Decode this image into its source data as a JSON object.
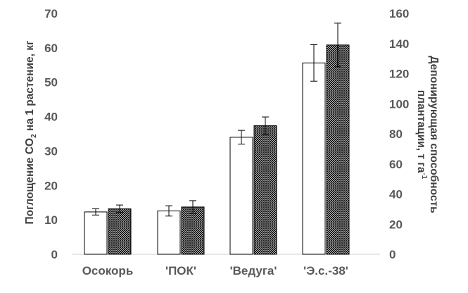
{
  "chart_data": {
    "type": "bar",
    "categories": [
      "Осокорь",
      "'ПОК'",
      "'Ведуга'",
      "'Э.с.-38'"
    ],
    "series": [
      {
        "axis": "left",
        "pattern": "white",
        "values": [
          12.3,
          12.6,
          34.0,
          55.6
        ],
        "errors": [
          0.9,
          1.5,
          2.0,
          5.3
        ]
      },
      {
        "axis": "right",
        "pattern": "hatched",
        "values": [
          30.2,
          31.4,
          85.4,
          139.0
        ],
        "errors": [
          2.5,
          4.2,
          5.8,
          14.5
        ]
      }
    ],
    "y_left": {
      "label_main": "Поглощение CO",
      "label_sub": "2",
      "label_rest": " на 1 растение, кг",
      "ylim": [
        0,
        70
      ],
      "ticks": [
        "0",
        "10",
        "20",
        "30",
        "40",
        "50",
        "60",
        "70"
      ]
    },
    "y_right": {
      "label_line1": "Депонирующая способность",
      "label_line2_main": "плантации, т га",
      "label_line2_sup": "-1",
      "ylim": [
        0,
        160
      ],
      "ticks": [
        "0",
        "20",
        "40",
        "60",
        "80",
        "100",
        "120",
        "140",
        "160"
      ]
    },
    "grid": false,
    "legend": "none",
    "colors": {
      "bar_stroke": "#000000",
      "bar_fill": "#ffffff",
      "hatch": "#000000",
      "tick_text": "#595959",
      "axis_line": "#d9d9d9"
    }
  }
}
